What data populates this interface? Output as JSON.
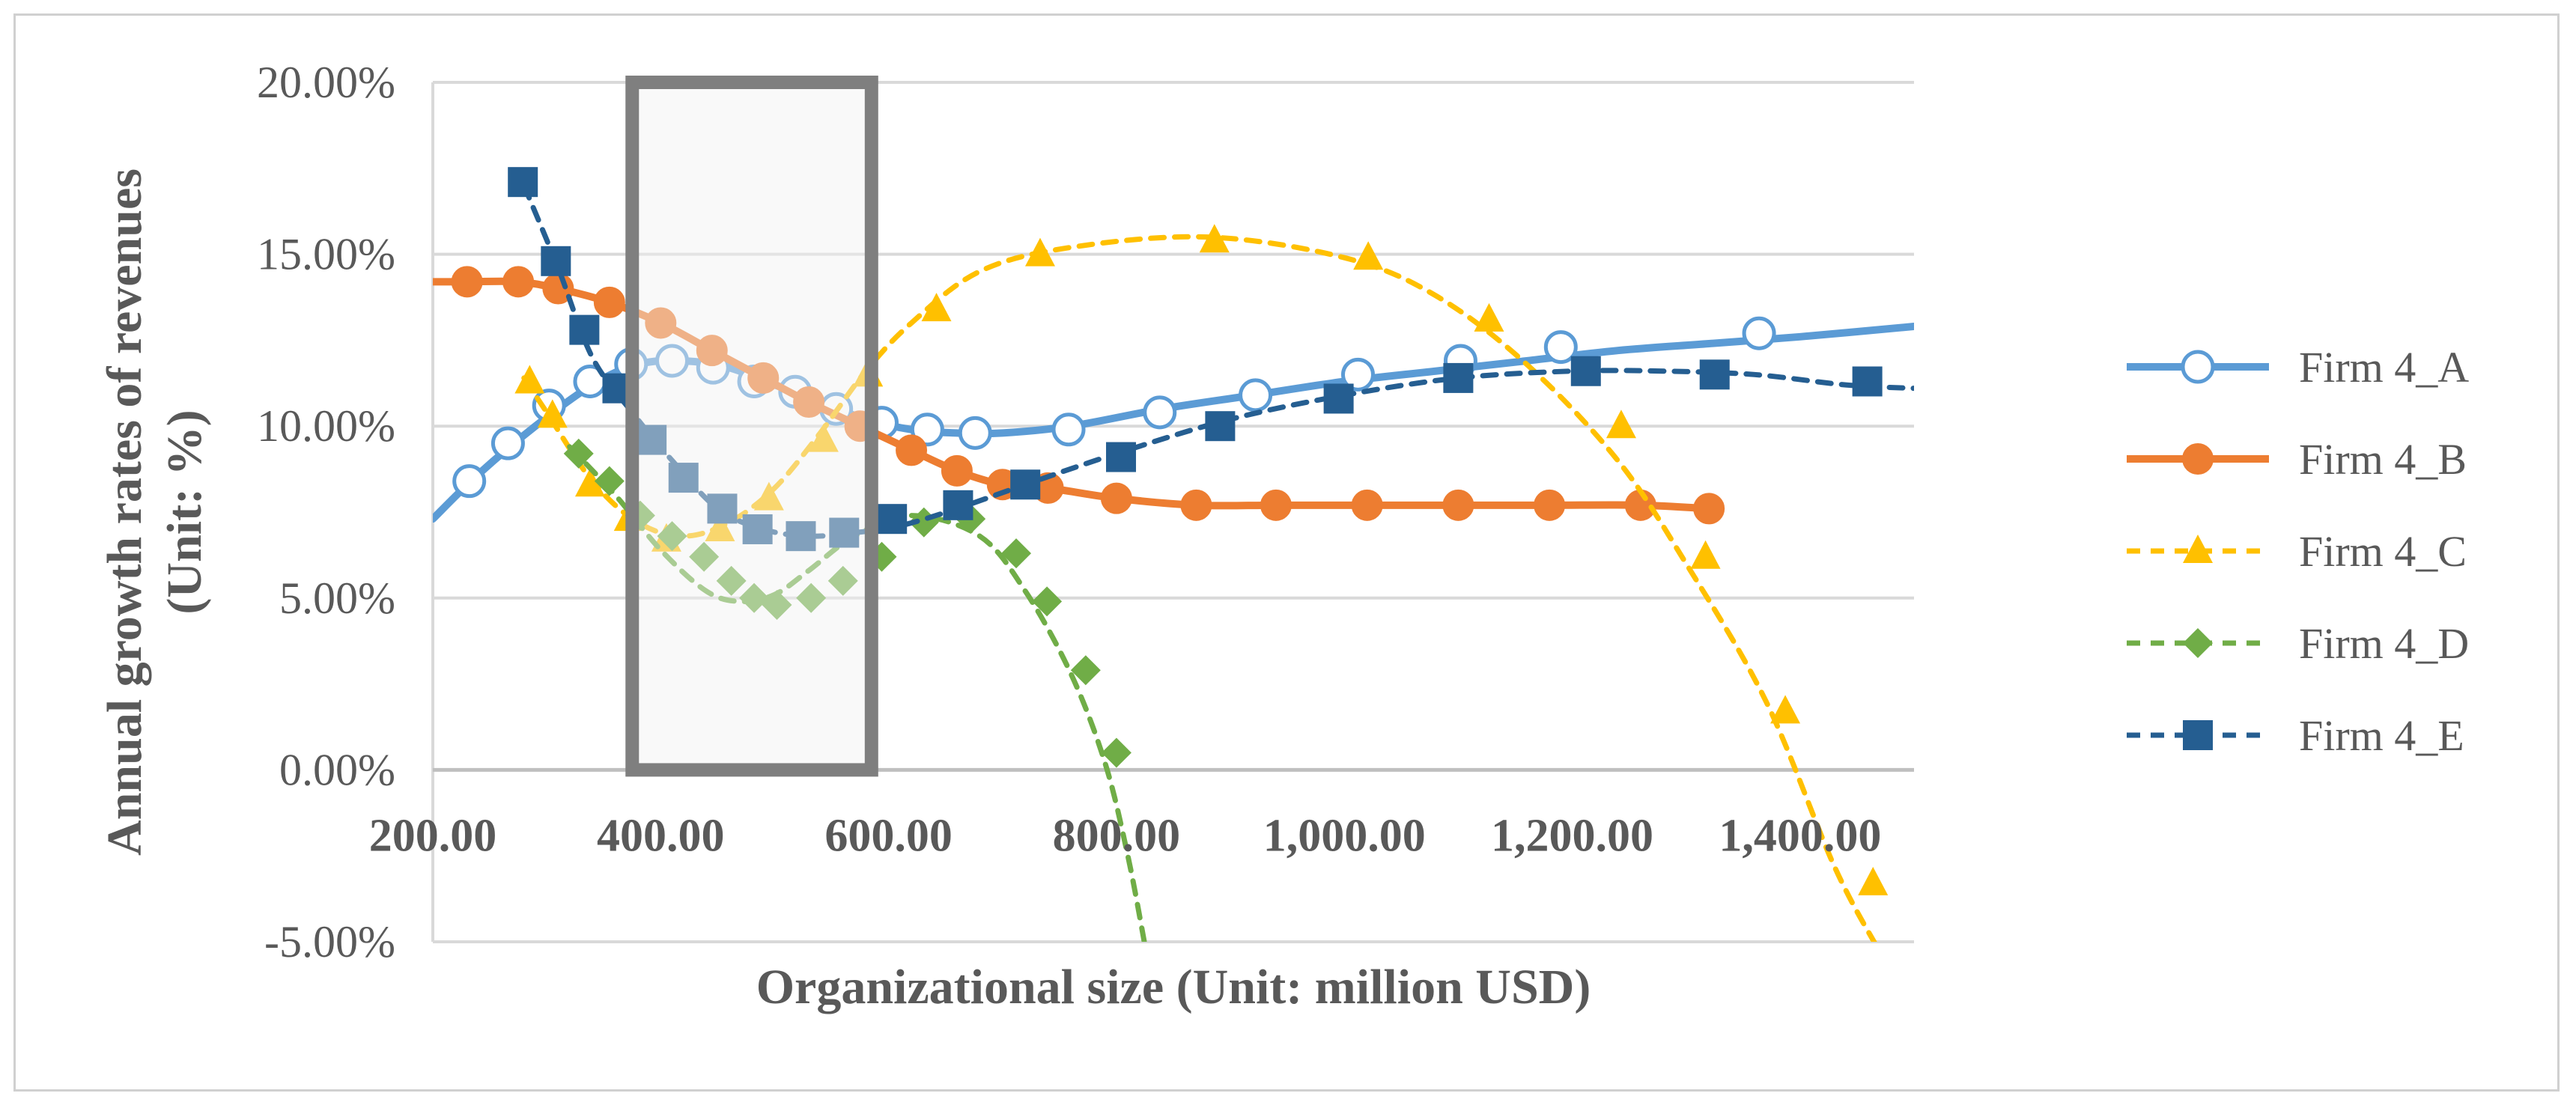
{
  "chart_data": {
    "type": "line",
    "title": "",
    "xlabel": "Organizational size (Unit: million USD)",
    "ylabel_lines": [
      "Annual growth rates of revenues",
      "(Unit: %)"
    ],
    "xlim": [
      200,
      1500
    ],
    "ylim": [
      -5,
      20
    ],
    "x_ticks": [
      200,
      400,
      600,
      800,
      1000,
      1200,
      1400
    ],
    "x_tick_labels": [
      "200.00",
      "400.00",
      "600.00",
      "800.00",
      "1,000.00",
      "1,200.00",
      "1,400.00"
    ],
    "y_ticks": [
      -5,
      0,
      5,
      10,
      15,
      20
    ],
    "y_tick_labels": [
      "-5.00%",
      "0.00%",
      "5.00%",
      "10.00%",
      "15.00%",
      "20.00%"
    ],
    "grid": true,
    "legend_position": "right",
    "highlight_box": {
      "x_range": [
        375,
        585
      ],
      "y_range": [
        0,
        20
      ]
    },
    "series": [
      {
        "name": "Firm 4_A",
        "color": "#5b9bd5",
        "style": "solid",
        "marker": "circle-open",
        "line_x": [
          200,
          240,
          290,
          340,
          380,
          420,
          460,
          500,
          540,
          580,
          620,
          660,
          700,
          760,
          840,
          920,
          1000,
          1080,
          1160,
          1240,
          1320,
          1400,
          1500
        ],
        "line_y": [
          7.3,
          8.6,
          10.0,
          11.2,
          11.8,
          11.9,
          11.7,
          11.2,
          10.7,
          10.2,
          9.9,
          9.8,
          9.8,
          10.0,
          10.5,
          10.9,
          11.3,
          11.6,
          11.9,
          12.2,
          12.4,
          12.6,
          12.9
        ],
        "points_x": [
          232,
          266,
          302,
          338,
          374,
          410,
          446,
          482,
          518,
          554,
          594,
          634,
          676,
          758,
          838,
          922,
          1012,
          1102,
          1190,
          1364
        ],
        "points_y": [
          8.4,
          9.5,
          10.6,
          11.3,
          11.8,
          11.9,
          11.7,
          11.3,
          11.0,
          10.5,
          10.1,
          9.9,
          9.8,
          9.9,
          10.4,
          10.9,
          11.5,
          11.9,
          12.3,
          12.7
        ]
      },
      {
        "name": "Firm 4_B",
        "color": "#ed7d31",
        "style": "solid",
        "marker": "circle",
        "line_x": [
          200,
          230,
          275,
          310,
          355,
          400,
          445,
          490,
          530,
          575,
          620,
          660,
          700,
          740,
          800,
          870,
          940,
          1020,
          1100,
          1180,
          1260,
          1320
        ],
        "line_y": [
          14.2,
          14.2,
          14.2,
          14.0,
          13.6,
          13.0,
          12.2,
          11.4,
          10.7,
          10.0,
          9.3,
          8.7,
          8.3,
          8.2,
          7.9,
          7.7,
          7.7,
          7.7,
          7.7,
          7.7,
          7.7,
          7.6
        ],
        "points_x": [
          230,
          275,
          310,
          355,
          400,
          445,
          490,
          530,
          575,
          620,
          660,
          700,
          740,
          800,
          870,
          940,
          1020,
          1100,
          1180,
          1260,
          1320
        ],
        "points_y": [
          14.2,
          14.2,
          14.0,
          13.6,
          13.0,
          12.2,
          11.4,
          10.7,
          10.0,
          9.3,
          8.7,
          8.3,
          8.2,
          7.9,
          7.7,
          7.7,
          7.7,
          7.7,
          7.7,
          7.7,
          7.6
        ]
      },
      {
        "name": "Firm 4_C",
        "color": "#ffc000",
        "style": "dashed",
        "marker": "triangle",
        "line_x": [
          280,
          300,
          340,
          380,
          420,
          460,
          500,
          540,
          580,
          620,
          680,
          760,
          880,
          1000,
          1080,
          1160,
          1240,
          1300,
          1370,
          1430,
          1470
        ],
        "line_y": [
          11.4,
          10.4,
          8.4,
          7.2,
          6.8,
          7.2,
          8.2,
          9.8,
          11.6,
          13.0,
          14.5,
          15.2,
          15.5,
          14.9,
          13.8,
          11.8,
          9.0,
          6.0,
          2.0,
          -2.8,
          -5.3
        ],
        "points_x": [
          285,
          305,
          338,
          372,
          405,
          452,
          495,
          543,
          582,
          642,
          733,
          886,
          1021,
          1127,
          1243,
          1317,
          1387,
          1464
        ],
        "points_y": [
          11.3,
          10.3,
          8.3,
          7.3,
          6.7,
          7.0,
          7.9,
          9.6,
          11.5,
          13.4,
          15.0,
          15.4,
          14.9,
          13.1,
          10.0,
          6.2,
          1.7,
          -3.3
        ]
      },
      {
        "name": "Firm 4_D",
        "color": "#70ad47",
        "style": "dashed",
        "marker": "diamond",
        "line_x": [
          320,
          360,
          400,
          440,
          470,
          500,
          530,
          570,
          620,
          680,
          720,
          760,
          790,
          810,
          825
        ],
        "line_y": [
          9.4,
          8.0,
          6.4,
          5.2,
          4.9,
          5.1,
          5.8,
          6.8,
          7.4,
          6.8,
          5.2,
          2.8,
          0.2,
          -2.5,
          -5.1
        ],
        "points_x": [
          328,
          355,
          382,
          410,
          438,
          462,
          482,
          502,
          532,
          560,
          594,
          631,
          672,
          712,
          739,
          773,
          800
        ],
        "points_y": [
          9.2,
          8.4,
          7.4,
          6.8,
          6.2,
          5.5,
          5.0,
          4.8,
          5.0,
          5.5,
          6.2,
          7.2,
          7.3,
          6.3,
          4.9,
          2.9,
          0.5
        ]
      },
      {
        "name": "Firm 4_E",
        "color": "#255e91",
        "style": "dashed",
        "marker": "square",
        "line_x": [
          280,
          310,
          340,
          375,
          410,
          450,
          490,
          530,
          570,
          610,
          660,
          720,
          800,
          900,
          1000,
          1100,
          1200,
          1280,
          1360,
          1440,
          1500
        ],
        "line_y": [
          17.0,
          14.6,
          12.0,
          10.4,
          9.0,
          7.6,
          7.0,
          6.8,
          6.9,
          7.1,
          7.6,
          8.3,
          9.2,
          10.2,
          10.9,
          11.4,
          11.6,
          11.6,
          11.5,
          11.2,
          11.1
        ],
        "points_x": [
          279,
          308,
          333,
          362,
          392,
          420,
          454,
          485,
          523,
          561,
          603,
          661,
          720,
          804,
          891,
          995,
          1100,
          1212,
          1325,
          1459
        ],
        "points_y": [
          17.1,
          14.8,
          12.8,
          11.1,
          9.6,
          8.5,
          7.6,
          7.0,
          6.8,
          6.9,
          7.3,
          7.7,
          8.3,
          9.1,
          10.0,
          10.8,
          11.4,
          11.6,
          11.5,
          11.3
        ]
      }
    ]
  }
}
